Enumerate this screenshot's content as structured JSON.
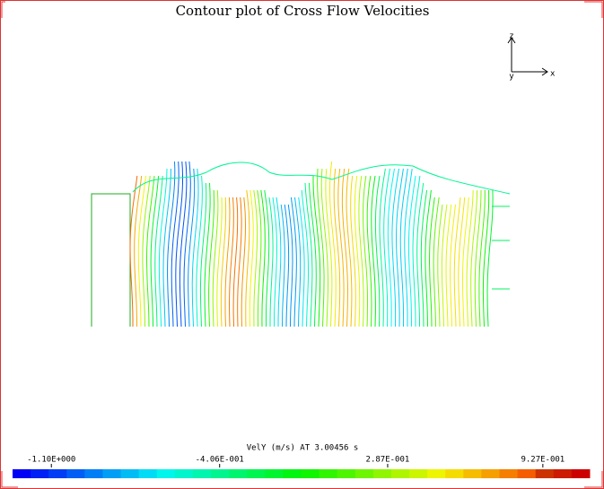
{
  "chart_data": {
    "type": "contour",
    "title": "Contour plot of Cross Flow Velocities",
    "colorbar_label": "VelY (m/s) AT 3.00456 s",
    "zlim": [
      -1.26,
      1.12
    ],
    "zticks": [
      {
        "value": -1.1,
        "label": "-1.10E+000"
      },
      {
        "value": -0.406,
        "label": "-4.06E-001"
      },
      {
        "value": 0.287,
        "label": "2.87E-001"
      },
      {
        "value": 0.927,
        "label": "9.27E-001"
      }
    ],
    "axis_labels": {
      "vertical": "z",
      "horizontal": "x",
      "depth": "y"
    }
  }
}
